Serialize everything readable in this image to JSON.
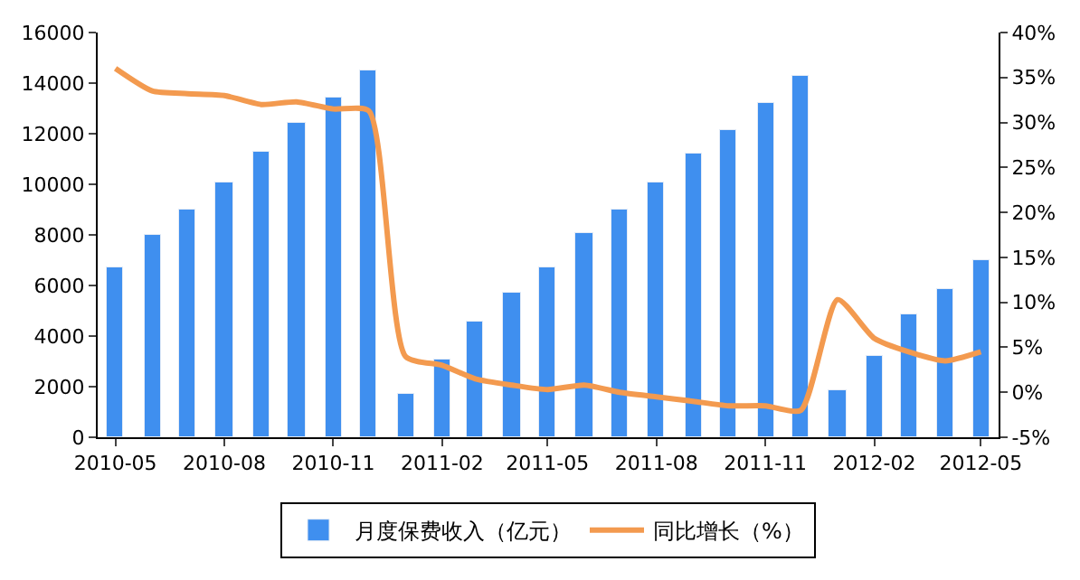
{
  "chart_data": {
    "type": "bar",
    "x": [
      "2010-05",
      "2010-06",
      "2010-07",
      "2010-08",
      "2010-09",
      "2010-10",
      "2010-11",
      "2010-12",
      "2011-01",
      "2011-02",
      "2011-03",
      "2011-04",
      "2011-05",
      "2011-06",
      "2011-07",
      "2011-08",
      "2011-09",
      "2011-10",
      "2011-11",
      "2011-12",
      "2012-01",
      "2012-02",
      "2012-03",
      "2012-04",
      "2012-05"
    ],
    "series": [
      {
        "name": "月度保费收入（亿元）",
        "color": "#3f8fef",
        "values": [
          6700,
          8000,
          9000,
          10050,
          11300,
          12400,
          13400,
          14500,
          1700,
          3050,
          4600,
          5700,
          6750,
          8050,
          9000,
          10050,
          11200,
          12150,
          13250,
          14300,
          1850,
          3250,
          4850,
          5850,
          7000
        ]
      },
      {
        "name": "同比增长（%）",
        "type": "line",
        "axis": "y2",
        "color": "#f39a4f",
        "values": [
          36,
          33.5,
          33.2,
          33,
          32,
          32.3,
          31.5,
          31.3,
          4,
          3,
          1.5,
          0.8,
          0.3,
          0.8,
          0,
          -0.5,
          -1,
          -1.5,
          -1.5,
          -2,
          10.3,
          6,
          4.5,
          3.5,
          4.5
        ]
      }
    ],
    "xlim": [
      "2010-04-16",
      "2012-05-16"
    ],
    "xticks": [
      "2010-05",
      "2010-08",
      "2010-11",
      "2011-02",
      "2011-05",
      "2011-08",
      "2011-11",
      "2012-02",
      "2012-05"
    ],
    "ylim": [
      0,
      16000
    ],
    "yticks": [
      0,
      2000,
      4000,
      6000,
      8000,
      10000,
      12000,
      14000,
      16000
    ],
    "y2lim": [
      -5,
      40
    ],
    "y2ticks": [
      {
        "value": -5,
        "label": "-5%"
      },
      {
        "value": 0,
        "label": "0%"
      },
      {
        "value": 5,
        "label": "5%"
      },
      {
        "value": 10,
        "label": "10%"
      },
      {
        "value": 15,
        "label": "15%"
      },
      {
        "value": 20,
        "label": "20%"
      },
      {
        "value": 25,
        "label": "25%"
      },
      {
        "value": 30,
        "label": "30%"
      },
      {
        "value": 35,
        "label": "35%"
      },
      {
        "value": 40,
        "label": "40%"
      }
    ],
    "legend": "bottom",
    "marker": "none",
    "line_style": "solid"
  }
}
